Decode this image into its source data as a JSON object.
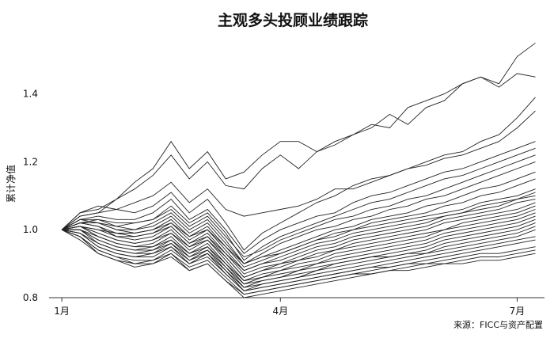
{
  "chart_data": {
    "type": "line",
    "title": "主观多头投顾业绩跟踪",
    "xlabel": "",
    "ylabel": "累计净值",
    "source": "来源：FICC与资产配置",
    "x_ticks": [
      {
        "label": "1月",
        "t": 0
      },
      {
        "label": "4月",
        "t": 12
      },
      {
        "label": "7月",
        "t": 25
      }
    ],
    "y_ticks": [
      {
        "label": "0.8",
        "v": 0.8
      },
      {
        "label": "1.0",
        "v": 1.0
      },
      {
        "label": "1.2",
        "v": 1.2
      },
      {
        "label": "1.4",
        "v": 1.4
      }
    ],
    "xlim": [
      -0.7,
      26.5
    ],
    "ylim": [
      0.8,
      1.56
    ],
    "grid": false,
    "x": [
      0,
      1,
      2,
      3,
      4,
      5,
      6,
      7,
      8,
      9,
      10,
      11,
      12,
      13,
      14,
      15,
      16,
      17,
      18,
      19,
      20,
      21,
      22,
      23,
      24,
      25,
      26
    ],
    "series": [
      {
        "values": [
          1.0,
          1.05,
          1.06,
          1.09,
          1.14,
          1.18,
          1.26,
          1.18,
          1.23,
          1.15,
          1.17,
          1.22,
          1.26,
          1.26,
          1.23,
          1.26,
          1.28,
          1.31,
          1.3,
          1.36,
          1.38,
          1.4,
          1.43,
          1.45,
          1.43,
          1.51,
          1.55
        ]
      },
      {
        "values": [
          1.0,
          1.04,
          1.05,
          1.09,
          1.12,
          1.16,
          1.22,
          1.15,
          1.2,
          1.13,
          1.12,
          1.18,
          1.22,
          1.18,
          1.23,
          1.25,
          1.28,
          1.3,
          1.34,
          1.31,
          1.36,
          1.38,
          1.43,
          1.45,
          1.42,
          1.46,
          1.45
        ]
      },
      {
        "values": [
          1.0,
          1.04,
          1.05,
          1.06,
          1.08,
          1.1,
          1.14,
          1.08,
          1.12,
          1.06,
          1.04,
          1.05,
          1.06,
          1.07,
          1.09,
          1.12,
          1.12,
          1.14,
          1.16,
          1.18,
          1.2,
          1.22,
          1.23,
          1.26,
          1.28,
          1.33,
          1.39
        ]
      },
      {
        "values": [
          1.0,
          1.05,
          1.07,
          1.06,
          1.05,
          1.07,
          1.11,
          1.05,
          1.09,
          1.02,
          0.94,
          0.99,
          1.02,
          1.05,
          1.08,
          1.1,
          1.13,
          1.15,
          1.16,
          1.18,
          1.19,
          1.21,
          1.22,
          1.24,
          1.26,
          1.3,
          1.35
        ]
      },
      {
        "values": [
          1.0,
          1.03,
          1.04,
          1.03,
          1.03,
          1.05,
          1.09,
          1.03,
          1.06,
          1.0,
          0.93,
          0.97,
          1.0,
          1.02,
          1.04,
          1.05,
          1.08,
          1.1,
          1.11,
          1.13,
          1.15,
          1.17,
          1.18,
          1.2,
          1.22,
          1.24,
          1.26
        ]
      },
      {
        "values": [
          1.0,
          1.02,
          1.03,
          1.02,
          1.02,
          1.03,
          1.07,
          1.02,
          1.05,
          0.99,
          0.91,
          0.95,
          0.98,
          1.0,
          1.02,
          1.04,
          1.06,
          1.08,
          1.09,
          1.11,
          1.13,
          1.15,
          1.16,
          1.18,
          1.2,
          1.22,
          1.24
        ]
      },
      {
        "values": [
          1.0,
          1.03,
          1.03,
          1.01,
          1.02,
          1.03,
          1.06,
          1.01,
          1.04,
          0.98,
          0.92,
          0.94,
          0.97,
          0.99,
          1.01,
          1.03,
          1.04,
          1.06,
          1.07,
          1.09,
          1.1,
          1.12,
          1.14,
          1.16,
          1.18,
          1.2,
          1.22
        ]
      },
      {
        "values": [
          1.0,
          1.02,
          1.02,
          1.0,
          1.0,
          1.02,
          1.05,
          1.0,
          1.03,
          0.97,
          0.9,
          0.93,
          0.96,
          0.98,
          1.0,
          1.01,
          1.03,
          1.04,
          1.06,
          1.07,
          1.09,
          1.1,
          1.12,
          1.14,
          1.16,
          1.18,
          1.2
        ]
      },
      {
        "values": [
          1.0,
          1.03,
          1.02,
          1.01,
          1.0,
          1.01,
          1.04,
          0.99,
          1.02,
          0.96,
          0.9,
          0.92,
          0.94,
          0.96,
          0.98,
          1.0,
          1.01,
          1.03,
          1.04,
          1.05,
          1.07,
          1.08,
          1.1,
          1.12,
          1.13,
          1.15,
          1.17
        ]
      },
      {
        "values": [
          1.0,
          1.02,
          1.01,
          0.99,
          0.99,
          1.0,
          1.03,
          0.98,
          1.01,
          0.95,
          0.89,
          0.91,
          0.93,
          0.95,
          0.97,
          0.99,
          1.0,
          1.02,
          1.03,
          1.04,
          1.05,
          1.07,
          1.08,
          1.1,
          1.11,
          1.13,
          1.15
        ]
      },
      {
        "values": [
          1.0,
          1.02,
          1.02,
          1.0,
          0.99,
          1.0,
          1.02,
          0.98,
          1.0,
          0.95,
          0.9,
          0.92,
          0.93,
          0.95,
          0.97,
          0.98,
          1.0,
          1.01,
          1.02,
          1.03,
          1.04,
          1.05,
          1.06,
          1.08,
          1.09,
          1.1,
          1.12
        ]
      },
      {
        "values": [
          1.0,
          1.01,
          1.0,
          0.99,
          0.98,
          0.99,
          1.02,
          0.97,
          1.0,
          0.94,
          0.88,
          0.9,
          0.92,
          0.94,
          0.96,
          0.97,
          0.99,
          1.0,
          1.01,
          1.02,
          1.03,
          1.04,
          1.05,
          1.07,
          1.08,
          1.09,
          1.11
        ]
      },
      {
        "values": [
          1.0,
          1.02,
          1.01,
          0.98,
          0.98,
          0.99,
          1.01,
          0.96,
          0.99,
          0.93,
          0.88,
          0.9,
          0.91,
          0.93,
          0.95,
          0.96,
          0.98,
          0.99,
          1.0,
          1.01,
          1.02,
          1.04,
          1.05,
          1.06,
          1.07,
          1.09,
          1.1
        ]
      },
      {
        "values": [
          1.0,
          1.01,
          1.0,
          0.98,
          0.97,
          0.98,
          1.01,
          0.96,
          0.98,
          0.93,
          0.87,
          0.89,
          0.9,
          0.92,
          0.94,
          0.95,
          0.97,
          0.98,
          0.99,
          1.0,
          1.01,
          1.03,
          1.04,
          1.05,
          1.06,
          1.08,
          1.09
        ]
      },
      {
        "values": [
          1.0,
          1.01,
          0.99,
          0.97,
          0.96,
          0.97,
          1.0,
          0.95,
          0.98,
          0.92,
          0.86,
          0.88,
          0.9,
          0.91,
          0.93,
          0.94,
          0.96,
          0.97,
          0.98,
          0.99,
          1.0,
          1.02,
          1.03,
          1.04,
          1.05,
          1.06,
          1.08
        ]
      },
      {
        "values": [
          1.0,
          1.01,
          0.99,
          0.97,
          0.96,
          0.97,
          0.99,
          0.95,
          0.97,
          0.92,
          0.86,
          0.88,
          0.89,
          0.91,
          0.92,
          0.94,
          0.95,
          0.96,
          0.97,
          0.98,
          0.99,
          1.0,
          1.02,
          1.03,
          1.04,
          1.05,
          1.07
        ]
      },
      {
        "values": [
          1.0,
          1.01,
          0.98,
          0.96,
          0.95,
          0.96,
          0.99,
          0.94,
          0.97,
          0.91,
          0.85,
          0.87,
          0.88,
          0.9,
          0.91,
          0.93,
          0.94,
          0.95,
          0.96,
          0.97,
          0.98,
          1.0,
          1.01,
          1.02,
          1.03,
          1.04,
          1.06
        ]
      },
      {
        "values": [
          1.0,
          1.0,
          0.98,
          0.96,
          0.95,
          0.95,
          0.98,
          0.93,
          0.96,
          0.9,
          0.85,
          0.86,
          0.88,
          0.89,
          0.9,
          0.92,
          0.93,
          0.94,
          0.95,
          0.96,
          0.97,
          0.99,
          1.0,
          1.01,
          1.02,
          1.03,
          1.05
        ]
      },
      {
        "values": [
          1.0,
          1.0,
          0.97,
          0.95,
          0.94,
          0.95,
          0.97,
          0.93,
          0.95,
          0.9,
          0.84,
          0.86,
          0.87,
          0.88,
          0.9,
          0.91,
          0.92,
          0.93,
          0.94,
          0.95,
          0.96,
          0.98,
          0.99,
          1.0,
          1.01,
          1.02,
          1.04
        ]
      },
      {
        "values": [
          1.0,
          1.0,
          0.97,
          0.95,
          0.94,
          0.94,
          0.97,
          0.92,
          0.95,
          0.89,
          0.84,
          0.85,
          0.86,
          0.88,
          0.89,
          0.9,
          0.91,
          0.92,
          0.93,
          0.94,
          0.95,
          0.97,
          0.98,
          0.99,
          1.0,
          1.01,
          1.03
        ]
      },
      {
        "values": [
          1.0,
          1.0,
          0.96,
          0.94,
          0.93,
          0.94,
          0.96,
          0.92,
          0.94,
          0.89,
          0.83,
          0.85,
          0.86,
          0.87,
          0.88,
          0.9,
          0.91,
          0.92,
          0.92,
          0.93,
          0.94,
          0.96,
          0.97,
          0.98,
          0.99,
          1.0,
          1.02
        ]
      },
      {
        "values": [
          1.0,
          0.99,
          0.96,
          0.94,
          0.93,
          0.93,
          0.96,
          0.91,
          0.94,
          0.88,
          0.83,
          0.84,
          0.85,
          0.86,
          0.88,
          0.89,
          0.9,
          0.91,
          0.92,
          0.93,
          0.93,
          0.95,
          0.96,
          0.97,
          0.98,
          0.99,
          1.01
        ]
      },
      {
        "values": [
          1.0,
          0.99,
          0.95,
          0.93,
          0.92,
          0.93,
          0.95,
          0.91,
          0.93,
          0.88,
          0.82,
          0.84,
          0.85,
          0.86,
          0.87,
          0.88,
          0.89,
          0.9,
          0.91,
          0.92,
          0.93,
          0.94,
          0.95,
          0.96,
          0.97,
          0.98,
          1.0
        ]
      },
      {
        "values": [
          1.0,
          0.99,
          0.95,
          0.93,
          0.92,
          0.92,
          0.95,
          0.9,
          0.93,
          0.87,
          0.82,
          0.83,
          0.84,
          0.85,
          0.86,
          0.87,
          0.88,
          0.89,
          0.9,
          0.91,
          0.92,
          0.93,
          0.94,
          0.95,
          0.96,
          0.97,
          0.98
        ]
      },
      {
        "values": [
          1.0,
          0.98,
          0.94,
          0.92,
          0.91,
          0.91,
          0.94,
          0.9,
          0.92,
          0.87,
          0.82,
          0.83,
          0.84,
          0.85,
          0.86,
          0.87,
          0.88,
          0.89,
          0.89,
          0.9,
          0.91,
          0.92,
          0.93,
          0.94,
          0.95,
          0.96,
          0.97
        ]
      },
      {
        "values": [
          1.0,
          0.98,
          0.94,
          0.92,
          0.9,
          0.91,
          0.93,
          0.89,
          0.91,
          0.86,
          0.81,
          0.82,
          0.83,
          0.84,
          0.85,
          0.86,
          0.87,
          0.88,
          0.89,
          0.9,
          0.9,
          0.91,
          0.92,
          0.93,
          0.93,
          0.94,
          0.95
        ]
      },
      {
        "values": [
          1.0,
          0.98,
          0.93,
          0.91,
          0.9,
          0.9,
          0.93,
          0.88,
          0.9,
          0.85,
          0.81,
          0.82,
          0.83,
          0.84,
          0.85,
          0.86,
          0.87,
          0.87,
          0.88,
          0.89,
          0.9,
          0.9,
          0.91,
          0.92,
          0.92,
          0.93,
          0.94
        ]
      },
      {
        "values": [
          1.0,
          0.97,
          0.93,
          0.91,
          0.89,
          0.9,
          0.92,
          0.88,
          0.9,
          0.85,
          0.8,
          0.81,
          0.82,
          0.83,
          0.84,
          0.85,
          0.86,
          0.87,
          0.88,
          0.88,
          0.89,
          0.9,
          0.9,
          0.91,
          0.91,
          0.92,
          0.93
        ]
      }
    ]
  }
}
